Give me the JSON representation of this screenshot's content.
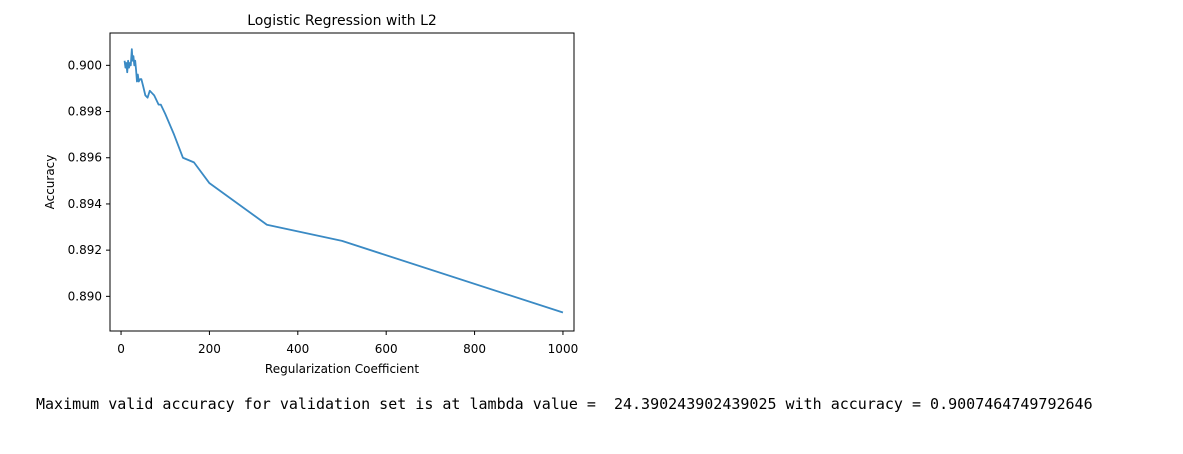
{
  "chart_data": {
    "type": "line",
    "title": "Logistic Regression with L2",
    "xlabel": "Regularization Coefficient",
    "ylabel": "Accuracy",
    "xlim": [
      -25,
      1025
    ],
    "ylim": [
      0.8885,
      0.9014
    ],
    "xticks": [
      0,
      200,
      400,
      600,
      800,
      1000
    ],
    "xtick_labels": [
      "0",
      "200",
      "400",
      "600",
      "800",
      "1000"
    ],
    "yticks": [
      0.89,
      0.892,
      0.894,
      0.896,
      0.898,
      0.9
    ],
    "ytick_labels": [
      "0.890",
      "0.892",
      "0.894",
      "0.896",
      "0.898",
      "0.900"
    ],
    "grid": false,
    "line_color": "#3a8ac4",
    "series": [
      {
        "x": [
          8,
          10,
          12,
          14,
          16,
          18,
          20,
          22,
          24.39,
          26,
          28,
          30,
          32,
          34,
          36,
          38,
          40,
          43,
          46,
          50,
          55,
          60,
          65,
          70,
          75,
          80,
          85,
          90,
          100,
          120,
          140,
          165,
          200,
          330,
          500,
          1000
        ],
        "y": [
          0.9002,
          0.8999,
          0.9001,
          0.8997,
          0.9002,
          0.8999,
          0.9001,
          0.9,
          0.9007,
          0.9002,
          0.9004,
          0.9,
          0.9002,
          0.8998,
          0.8993,
          0.8996,
          0.8993,
          0.8994,
          0.8994,
          0.8991,
          0.8987,
          0.8986,
          0.8989,
          0.8988,
          0.8987,
          0.8985,
          0.8983,
          0.8983,
          0.8979,
          0.897,
          0.896,
          0.8958,
          0.8949,
          0.8931,
          0.8924,
          0.8893
        ]
      }
    ]
  },
  "output": {
    "text": "Maximum valid accuracy for validation set is at lambda value =  24.390243902439025 with accuracy = 0.9007464749792646"
  }
}
